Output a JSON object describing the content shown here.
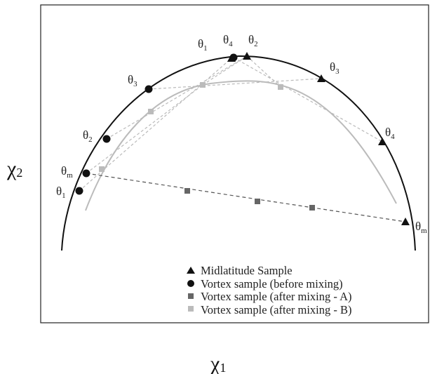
{
  "axes": {
    "x": {
      "symbol": "χ",
      "sub": "1"
    },
    "y": {
      "symbol": "χ",
      "sub": "2"
    }
  },
  "midlatitude_labels": [
    {
      "symbol": "θ",
      "sub": "1"
    },
    {
      "symbol": "θ",
      "sub": "2"
    },
    {
      "symbol": "θ",
      "sub": "3"
    },
    {
      "symbol": "θ",
      "sub": "4"
    },
    {
      "symbol": "θ",
      "sub": "m"
    }
  ],
  "vortex_labels": [
    {
      "symbol": "θ",
      "sub": "1"
    },
    {
      "symbol": "θ",
      "sub": "m"
    },
    {
      "symbol": "θ",
      "sub": "2"
    },
    {
      "symbol": "θ",
      "sub": "3"
    },
    {
      "symbol": "θ",
      "sub": "4"
    }
  ],
  "legend": [
    "Midlatitude Sample",
    "Vortex sample (before mixing)",
    "Vortex sample (after mixing - A)",
    "Vortex sample (after mixing - B)"
  ]
}
